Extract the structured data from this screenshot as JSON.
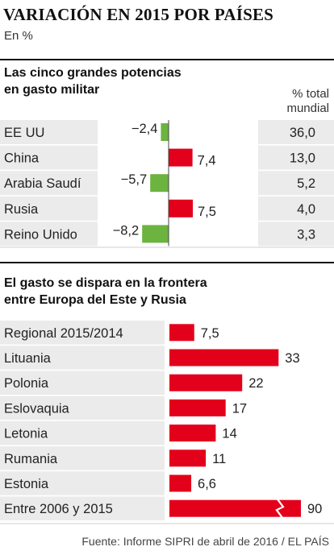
{
  "header": {
    "title": "VARIACIÓN EN 2015 POR PAÍSES",
    "subtitle": "En %"
  },
  "section1": {
    "title_line1": "Las cinco grandes potencias",
    "title_line2": "en gasto militar",
    "column_header_line1": "% total",
    "column_header_line2": "mundial"
  },
  "section2": {
    "title_line1": "El gasto se dispara en la frontera",
    "title_line2": "entre Europa del Este y Rusia"
  },
  "footer": {
    "source": "Fuente: Informe SIPRI de abril de 2016 / EL PAÍS"
  },
  "colors": {
    "positive": "#e3001b",
    "negative": "#6cb33f",
    "row_shade": "#ebebeb",
    "divider": "#ffffff",
    "text": "#222222"
  },
  "chart_data": [
    {
      "type": "bar",
      "orientation": "horizontal",
      "categories": [
        "EE UU",
        "China",
        "Arabia Saudí",
        "Rusia",
        "Reino Unido"
      ],
      "values": [
        -2.4,
        7.4,
        -5.7,
        7.5,
        -8.2
      ],
      "value_labels": [
        "−2,4",
        "7,4",
        "−5,7",
        "7,5",
        "−8,2"
      ],
      "share_of_world_total": [
        36.0,
        13.0,
        5.2,
        4.0,
        3.3
      ],
      "share_labels": [
        "36,0",
        "13,0",
        "5,2",
        "4,0",
        "3,3"
      ]
    },
    {
      "type": "bar",
      "orientation": "horizontal",
      "categories": [
        "Regional 2015/2014",
        "Lituania",
        "Polonia",
        "Eslovaquia",
        "Letonia",
        "Rumania",
        "Estonia",
        "Entre 2006 y 2015"
      ],
      "values": [
        7.5,
        33,
        22,
        17,
        14,
        11,
        6.6,
        90
      ],
      "value_labels": [
        "7,5",
        "33",
        "22",
        "17",
        "14",
        "11",
        "6,6",
        "90"
      ],
      "axis_break_on": "Entre 2006 y 2015"
    }
  ]
}
